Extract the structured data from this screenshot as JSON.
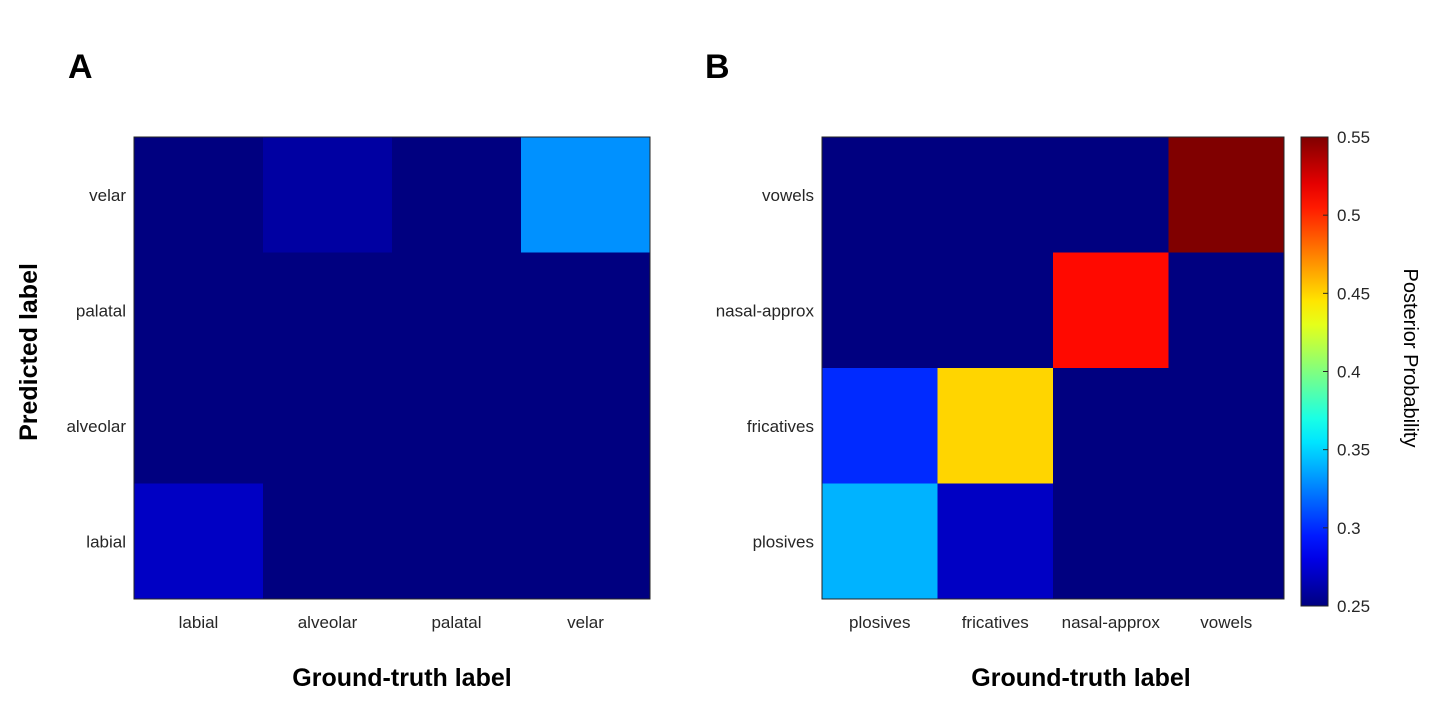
{
  "chart_data": [
    {
      "type": "heatmap",
      "panel": "A",
      "xlabel": "Ground-truth label",
      "ylabel": "Predicted label",
      "x_categories": [
        "labial",
        "alveolar",
        "palatal",
        "velar"
      ],
      "y_categories": [
        "velar",
        "palatal",
        "alveolar",
        "labial"
      ],
      "values": [
        [
          0.25,
          0.26,
          0.25,
          0.33
        ],
        [
          0.25,
          0.25,
          0.25,
          0.25
        ],
        [
          0.25,
          0.25,
          0.25,
          0.25
        ],
        [
          0.27,
          0.25,
          0.25,
          0.25
        ]
      ],
      "color_range": [
        0.25,
        0.55
      ],
      "colormap": "jet"
    },
    {
      "type": "heatmap",
      "panel": "B",
      "xlabel": "Ground-truth label",
      "ylabel": "",
      "x_categories": [
        "plosives",
        "fricatives",
        "nasal-approx",
        "vowels"
      ],
      "y_categories": [
        "vowels",
        "nasal-approx",
        "fricatives",
        "plosives"
      ],
      "values": [
        [
          0.25,
          0.25,
          0.25,
          0.55
        ],
        [
          0.25,
          0.25,
          0.51,
          0.25
        ],
        [
          0.3,
          0.45,
          0.25,
          0.25
        ],
        [
          0.34,
          0.27,
          0.25,
          0.25
        ]
      ],
      "color_range": [
        0.25,
        0.55
      ],
      "colormap": "jet",
      "colorbar": {
        "title": "Posterior Probability",
        "ticks": [
          0.25,
          0.3,
          0.35,
          0.4,
          0.45,
          0.5,
          0.55
        ],
        "tick_labels": [
          "0.25",
          "0.3",
          "0.35",
          "0.4",
          "0.45",
          "0.5",
          "0.55"
        ]
      }
    }
  ]
}
